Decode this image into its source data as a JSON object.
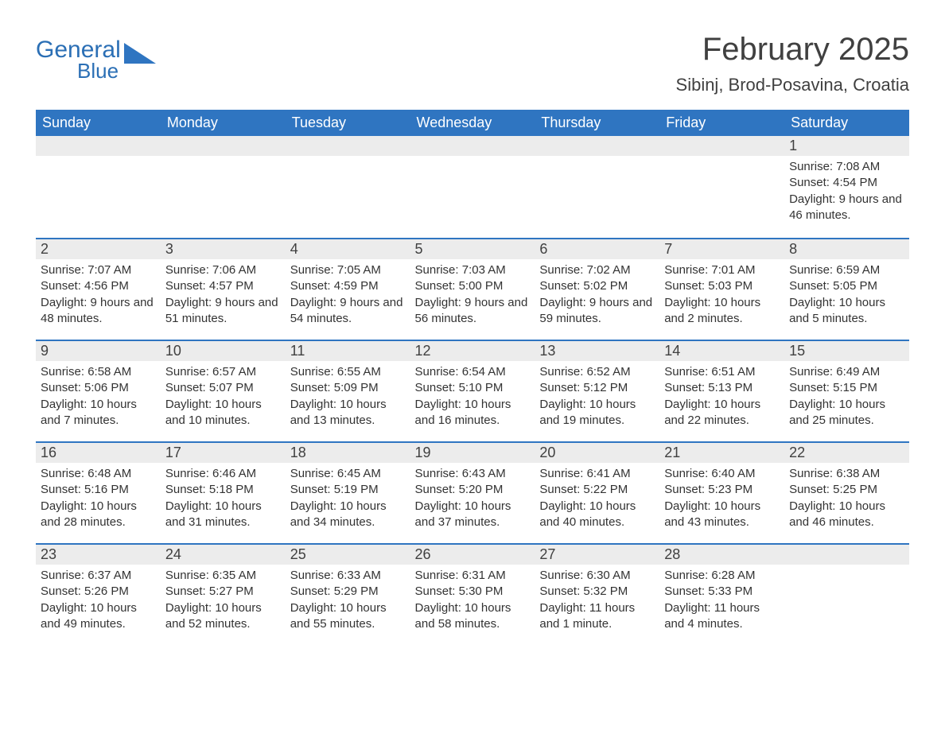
{
  "logo": {
    "word1": "General",
    "word2": "Blue",
    "accent": "#2f75c1"
  },
  "title": "February 2025",
  "location": "Sibinj, Brod-Posavina, Croatia",
  "header_bg": "#2f75c1",
  "header_fg": "#ffffff",
  "daynum_bg": "#ececec",
  "border_color": "#2f75c1",
  "text_color": "#333333",
  "weekdays": [
    "Sunday",
    "Monday",
    "Tuesday",
    "Wednesday",
    "Thursday",
    "Friday",
    "Saturday"
  ],
  "weeks": [
    [
      null,
      null,
      null,
      null,
      null,
      null,
      {
        "n": "1",
        "sunrise": "7:08 AM",
        "sunset": "4:54 PM",
        "daylight": "9 hours and 46 minutes."
      }
    ],
    [
      {
        "n": "2",
        "sunrise": "7:07 AM",
        "sunset": "4:56 PM",
        "daylight": "9 hours and 48 minutes."
      },
      {
        "n": "3",
        "sunrise": "7:06 AM",
        "sunset": "4:57 PM",
        "daylight": "9 hours and 51 minutes."
      },
      {
        "n": "4",
        "sunrise": "7:05 AM",
        "sunset": "4:59 PM",
        "daylight": "9 hours and 54 minutes."
      },
      {
        "n": "5",
        "sunrise": "7:03 AM",
        "sunset": "5:00 PM",
        "daylight": "9 hours and 56 minutes."
      },
      {
        "n": "6",
        "sunrise": "7:02 AM",
        "sunset": "5:02 PM",
        "daylight": "9 hours and 59 minutes."
      },
      {
        "n": "7",
        "sunrise": "7:01 AM",
        "sunset": "5:03 PM",
        "daylight": "10 hours and 2 minutes."
      },
      {
        "n": "8",
        "sunrise": "6:59 AM",
        "sunset": "5:05 PM",
        "daylight": "10 hours and 5 minutes."
      }
    ],
    [
      {
        "n": "9",
        "sunrise": "6:58 AM",
        "sunset": "5:06 PM",
        "daylight": "10 hours and 7 minutes."
      },
      {
        "n": "10",
        "sunrise": "6:57 AM",
        "sunset": "5:07 PM",
        "daylight": "10 hours and 10 minutes."
      },
      {
        "n": "11",
        "sunrise": "6:55 AM",
        "sunset": "5:09 PM",
        "daylight": "10 hours and 13 minutes."
      },
      {
        "n": "12",
        "sunrise": "6:54 AM",
        "sunset": "5:10 PM",
        "daylight": "10 hours and 16 minutes."
      },
      {
        "n": "13",
        "sunrise": "6:52 AM",
        "sunset": "5:12 PM",
        "daylight": "10 hours and 19 minutes."
      },
      {
        "n": "14",
        "sunrise": "6:51 AM",
        "sunset": "5:13 PM",
        "daylight": "10 hours and 22 minutes."
      },
      {
        "n": "15",
        "sunrise": "6:49 AM",
        "sunset": "5:15 PM",
        "daylight": "10 hours and 25 minutes."
      }
    ],
    [
      {
        "n": "16",
        "sunrise": "6:48 AM",
        "sunset": "5:16 PM",
        "daylight": "10 hours and 28 minutes."
      },
      {
        "n": "17",
        "sunrise": "6:46 AM",
        "sunset": "5:18 PM",
        "daylight": "10 hours and 31 minutes."
      },
      {
        "n": "18",
        "sunrise": "6:45 AM",
        "sunset": "5:19 PM",
        "daylight": "10 hours and 34 minutes."
      },
      {
        "n": "19",
        "sunrise": "6:43 AM",
        "sunset": "5:20 PM",
        "daylight": "10 hours and 37 minutes."
      },
      {
        "n": "20",
        "sunrise": "6:41 AM",
        "sunset": "5:22 PM",
        "daylight": "10 hours and 40 minutes."
      },
      {
        "n": "21",
        "sunrise": "6:40 AM",
        "sunset": "5:23 PM",
        "daylight": "10 hours and 43 minutes."
      },
      {
        "n": "22",
        "sunrise": "6:38 AM",
        "sunset": "5:25 PM",
        "daylight": "10 hours and 46 minutes."
      }
    ],
    [
      {
        "n": "23",
        "sunrise": "6:37 AM",
        "sunset": "5:26 PM",
        "daylight": "10 hours and 49 minutes."
      },
      {
        "n": "24",
        "sunrise": "6:35 AM",
        "sunset": "5:27 PM",
        "daylight": "10 hours and 52 minutes."
      },
      {
        "n": "25",
        "sunrise": "6:33 AM",
        "sunset": "5:29 PM",
        "daylight": "10 hours and 55 minutes."
      },
      {
        "n": "26",
        "sunrise": "6:31 AM",
        "sunset": "5:30 PM",
        "daylight": "10 hours and 58 minutes."
      },
      {
        "n": "27",
        "sunrise": "6:30 AM",
        "sunset": "5:32 PM",
        "daylight": "11 hours and 1 minute."
      },
      {
        "n": "28",
        "sunrise": "6:28 AM",
        "sunset": "5:33 PM",
        "daylight": "11 hours and 4 minutes."
      },
      null
    ]
  ],
  "labels": {
    "sunrise": "Sunrise: ",
    "sunset": "Sunset: ",
    "daylight": "Daylight: "
  }
}
